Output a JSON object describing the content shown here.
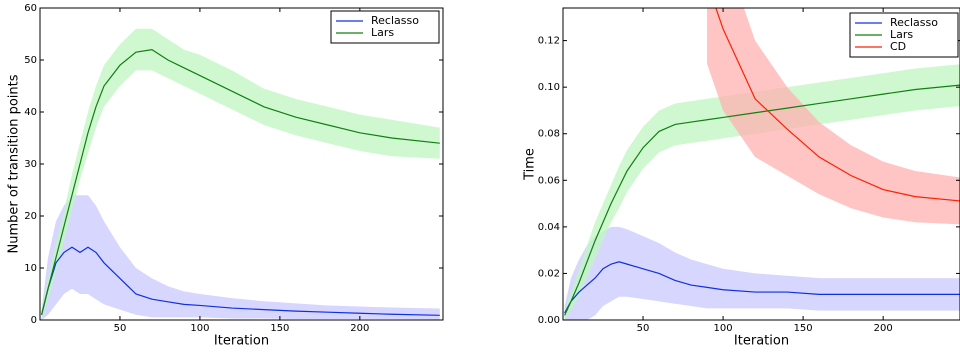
{
  "chart_data": [
    {
      "type": "line",
      "xlabel": "Iteration",
      "ylabel": "Number of transition points",
      "xlim": [
        0,
        252
      ],
      "ylim": [
        0,
        60
      ],
      "xticks": [
        50,
        100,
        150,
        200
      ],
      "yticks": [
        0,
        10,
        20,
        30,
        40,
        50,
        60
      ],
      "legend": "upper right",
      "x": [
        1,
        5,
        10,
        15,
        20,
        25,
        30,
        35,
        40,
        50,
        60,
        70,
        80,
        90,
        100,
        120,
        140,
        160,
        180,
        200,
        220,
        250
      ],
      "series": [
        {
          "name": "Reclasso",
          "color": "#1030e0",
          "band_color": "#c8c8ff",
          "values": [
            1,
            6,
            11,
            13,
            14,
            13,
            14,
            13,
            11,
            8,
            5,
            4,
            3.5,
            3,
            2.8,
            2.3,
            2,
            1.7,
            1.5,
            1.3,
            1.1,
            0.9
          ],
          "upper": [
            2,
            12,
            19,
            22,
            24,
            24,
            24,
            22,
            19,
            14,
            10,
            8,
            6.5,
            5.5,
            5,
            4.2,
            3.6,
            3.2,
            2.8,
            2.6,
            2.4,
            2.2
          ],
          "lower": [
            0,
            1,
            3,
            5,
            6,
            5,
            5,
            4,
            3,
            2,
            1,
            0.5,
            0.5,
            0.5,
            0.5,
            0.3,
            0.3,
            0.2,
            0.2,
            0.2,
            0.2,
            0.1
          ]
        },
        {
          "name": "Lars",
          "color": "#108010",
          "band_color": "#c0f5c0",
          "values": [
            1,
            6,
            12,
            18,
            24,
            30,
            36,
            41,
            45,
            49,
            51.5,
            52,
            50,
            48.5,
            47,
            44,
            41,
            39,
            37.5,
            36,
            35,
            34
          ],
          "upper": [
            2,
            8,
            15,
            21,
            28,
            34,
            40,
            45,
            49,
            53,
            56,
            56,
            54,
            52,
            51,
            48,
            44.5,
            42.5,
            41,
            39.5,
            38.5,
            37
          ],
          "lower": [
            0,
            4,
            9,
            15,
            21,
            27,
            32,
            37,
            41,
            45,
            48,
            48,
            46.5,
            45,
            43.5,
            40.5,
            37.5,
            35.5,
            34,
            32.5,
            31.5,
            31
          ]
        }
      ]
    },
    {
      "type": "line",
      "xlabel": "Iteration",
      "ylabel": "Time",
      "xlim": [
        0,
        248
      ],
      "ylim": [
        0,
        0.134
      ],
      "xticks": [
        50,
        100,
        150,
        200
      ],
      "yticks": [
        {
          "value": 0,
          "label": "0.00"
        },
        {
          "value": 0.02,
          "label": "0.02"
        },
        {
          "value": 0.04,
          "label": "0.04"
        },
        {
          "value": 0.06,
          "label": "0.06"
        },
        {
          "value": 0.08,
          "label": "0.08"
        },
        {
          "value": 0.1,
          "label": "0.10"
        },
        {
          "value": 0.12,
          "label": "0.12"
        }
      ],
      "legend": "upper right",
      "x": [
        1,
        5,
        10,
        15,
        20,
        25,
        30,
        35,
        40,
        50,
        60,
        70,
        80,
        90,
        100,
        120,
        140,
        160,
        180,
        200,
        220,
        250
      ],
      "series": [
        {
          "name": "Reclasso",
          "color": "#1030e0",
          "band_color": "#c8c8ff",
          "values": [
            0.003,
            0.008,
            0.012,
            0.015,
            0.018,
            0.022,
            0.024,
            0.025,
            0.024,
            0.022,
            0.02,
            0.017,
            0.015,
            0.014,
            0.013,
            0.012,
            0.012,
            0.011,
            0.011,
            0.011,
            0.011,
            0.011
          ],
          "upper": [
            0.006,
            0.018,
            0.026,
            0.032,
            0.036,
            0.038,
            0.04,
            0.04,
            0.039,
            0.036,
            0.033,
            0.029,
            0.026,
            0.024,
            0.022,
            0.02,
            0.019,
            0.018,
            0.018,
            0.018,
            0.018,
            0.018
          ],
          "lower": [
            0,
            0,
            0,
            0,
            0.002,
            0.006,
            0.008,
            0.01,
            0.01,
            0.009,
            0.008,
            0.007,
            0.006,
            0.005,
            0.005,
            0.005,
            0.005,
            0.004,
            0.004,
            0.004,
            0.004,
            0.004
          ]
        },
        {
          "name": "Lars",
          "color": "#108010",
          "band_color": "#c0f5c0",
          "values": [
            0.002,
            0.008,
            0.016,
            0.025,
            0.034,
            0.042,
            0.05,
            0.057,
            0.064,
            0.074,
            0.081,
            0.084,
            0.085,
            0.086,
            0.087,
            0.089,
            0.091,
            0.093,
            0.095,
            0.097,
            0.099,
            0.101
          ],
          "upper": [
            0.004,
            0.012,
            0.022,
            0.032,
            0.042,
            0.05,
            0.058,
            0.066,
            0.073,
            0.083,
            0.09,
            0.093,
            0.094,
            0.095,
            0.096,
            0.098,
            0.1,
            0.102,
            0.104,
            0.106,
            0.108,
            0.11
          ],
          "lower": [
            0,
            0.004,
            0.01,
            0.018,
            0.026,
            0.034,
            0.042,
            0.048,
            0.055,
            0.065,
            0.072,
            0.075,
            0.076,
            0.077,
            0.078,
            0.08,
            0.082,
            0.084,
            0.086,
            0.088,
            0.09,
            0.092
          ]
        },
        {
          "name": "CD",
          "color": "#ff2000",
          "band_color": "#ffb0b0",
          "values": [
            null,
            null,
            null,
            null,
            null,
            null,
            null,
            null,
            null,
            null,
            null,
            null,
            null,
            0.145,
            0.125,
            0.095,
            0.082,
            0.07,
            0.062,
            0.056,
            0.053,
            0.051
          ],
          "upper": [
            null,
            null,
            null,
            null,
            null,
            null,
            null,
            null,
            null,
            null,
            null,
            null,
            null,
            0.2,
            0.16,
            0.12,
            0.1,
            0.085,
            0.075,
            0.068,
            0.064,
            0.061
          ],
          "lower": [
            null,
            null,
            null,
            null,
            null,
            null,
            null,
            null,
            null,
            null,
            null,
            null,
            null,
            0.11,
            0.09,
            0.07,
            0.062,
            0.054,
            0.048,
            0.044,
            0.042,
            0.041
          ]
        }
      ]
    }
  ]
}
